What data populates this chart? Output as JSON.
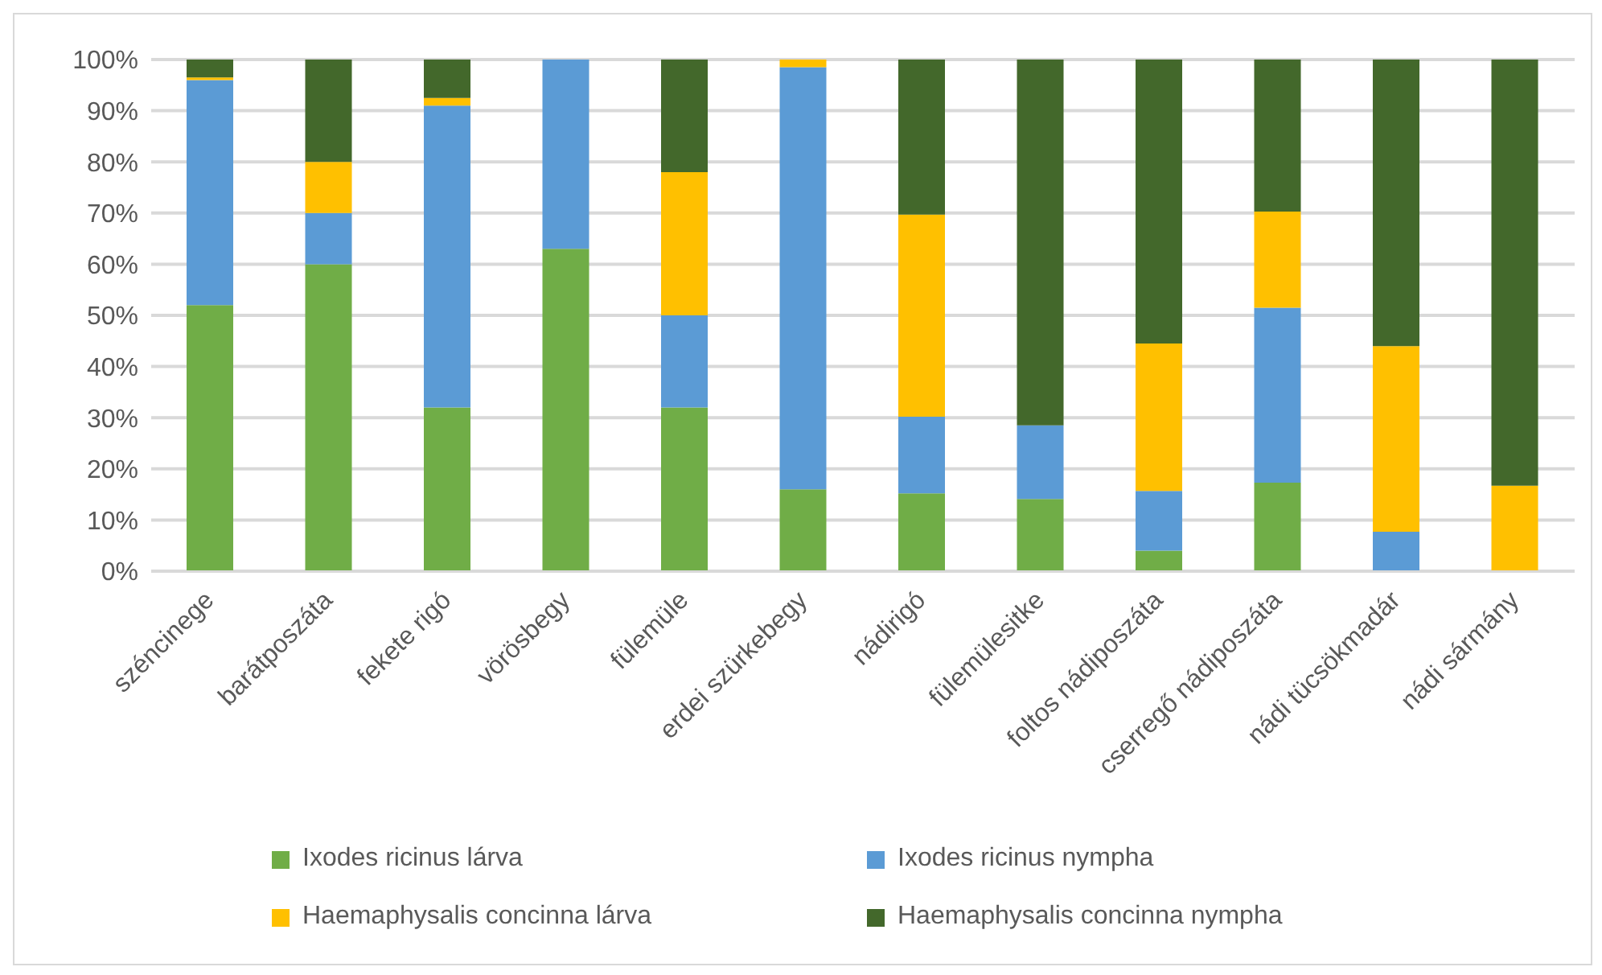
{
  "chart_data": {
    "type": "bar",
    "stacked": true,
    "categories": [
      "széncinege",
      "barátposzáta",
      "fekete rigó",
      "vörösbegy",
      "fülemüle",
      "erdei szürkebegy",
      "nádirigó",
      "fülemülesitke",
      "foltos nádiposzáta",
      "cserregő nádiposzáta",
      "nádi tücsökmadár",
      "nádi sármány"
    ],
    "series": [
      {
        "name": "Ixodes ricinus lárva",
        "color": "#70ad47",
        "values": [
          52,
          60,
          32,
          63,
          32,
          16,
          15.2,
          14.1,
          4,
          17.3,
          0,
          0
        ]
      },
      {
        "name": "Ixodes ricinus nympha",
        "color": "#5b9bd5",
        "values": [
          44,
          10,
          59,
          37,
          18,
          82.5,
          15,
          14.4,
          11.7,
          34.2,
          7.7,
          0
        ]
      },
      {
        "name": "Haemaphysalis concinna lárva",
        "color": "#ffc000",
        "values": [
          0.5,
          10,
          1.5,
          0,
          28,
          1.5,
          39.5,
          0,
          28.8,
          18.8,
          36.3,
          16.7
        ]
      },
      {
        "name": "Haemaphysalis concinna nympha",
        "color": "#43682b",
        "values": [
          3.5,
          20,
          7.5,
          0,
          22,
          0,
          30.3,
          71.5,
          55.5,
          29.7,
          56,
          83.3
        ]
      }
    ],
    "ylim": [
      0,
      100
    ],
    "yticks": [
      {
        "value": 0,
        "label": "0%"
      },
      {
        "value": 10,
        "label": "10%"
      },
      {
        "value": 20,
        "label": "20%"
      },
      {
        "value": 30,
        "label": "30%"
      },
      {
        "value": 40,
        "label": "40%"
      },
      {
        "value": 50,
        "label": "50%"
      },
      {
        "value": 60,
        "label": "60%"
      },
      {
        "value": 70,
        "label": "70%"
      },
      {
        "value": 80,
        "label": "80%"
      },
      {
        "value": 90,
        "label": "90%"
      },
      {
        "value": 100,
        "label": "100%"
      }
    ],
    "grid": "y",
    "legend": "bottom"
  }
}
